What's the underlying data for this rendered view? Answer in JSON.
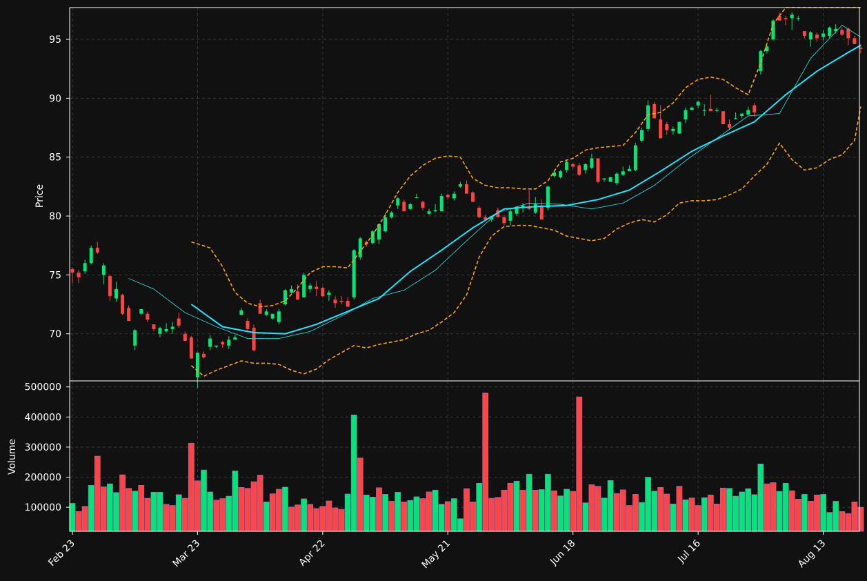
{
  "chart_data": [
    {
      "type": "candlestick",
      "panel": "price",
      "ylabel": "Price",
      "ylim": [
        66.0,
        97.7
      ],
      "yticks": [
        70,
        75,
        80,
        85,
        90,
        95
      ],
      "grid": true,
      "colors": {
        "up": "#00e676",
        "down": "#ff4444",
        "sma_fast": "#2ad4d4",
        "sma_slow": "#22e5ff",
        "bands": "#ffa500",
        "background": "#111111",
        "axes": "#ffffff",
        "grid": "#444444"
      },
      "candles_ohlc": [
        [
          75.5,
          75.6,
          74.3,
          75.2
        ],
        [
          75.2,
          75.4,
          74.3,
          74.8
        ],
        [
          75.3,
          76.3,
          75.1,
          76.0
        ],
        [
          76.0,
          77.5,
          75.9,
          77.3
        ],
        [
          77.3,
          77.8,
          76.8,
          76.9
        ],
        [
          75.0,
          76.0,
          74.2,
          75.8
        ],
        [
          74.9,
          75.0,
          72.8,
          73.2
        ],
        [
          73.0,
          74.4,
          72.7,
          73.8
        ],
        [
          73.3,
          73.4,
          71.6,
          71.7
        ],
        [
          72.2,
          72.4,
          71.1,
          71.1
        ],
        [
          69.0,
          70.4,
          68.6,
          70.3
        ],
        [
          71.7,
          72.0,
          71.6,
          72.1
        ],
        [
          71.7,
          71.9,
          71.0,
          71.2
        ],
        [
          70.8,
          70.8,
          70.2,
          70.4
        ],
        [
          70.0,
          70.6,
          69.7,
          70.5
        ],
        [
          70.2,
          70.9,
          70.1,
          70.4
        ],
        [
          70.4,
          71.0,
          70.0,
          70.6
        ],
        [
          71.3,
          71.8,
          70.5,
          70.7
        ],
        [
          70.0,
          70.2,
          69.4,
          69.4
        ],
        [
          69.7,
          69.8,
          67.9,
          67.9
        ],
        [
          66.3,
          68.4,
          65.4,
          68.4
        ],
        [
          68.3,
          68.5,
          67.9,
          68.0
        ],
        [
          68.9,
          69.9,
          68.6,
          69.6
        ],
        [
          68.9,
          69.0,
          68.8,
          69.0
        ],
        [
          69.3,
          69.4,
          68.8,
          69.1
        ],
        [
          69.0,
          69.8,
          68.7,
          69.5
        ],
        [
          69.5,
          69.9,
          69.5,
          69.7
        ],
        [
          71.6,
          72.2,
          71.6,
          72.0
        ],
        [
          71.1,
          71.3,
          70.2,
          70.4
        ],
        [
          70.5,
          70.8,
          68.5,
          68.6
        ],
        [
          72.6,
          72.9,
          71.8,
          71.7
        ],
        [
          71.6,
          72.1,
          71.5,
          71.9
        ],
        [
          71.3,
          71.7,
          71.2,
          71.7
        ],
        [
          71.0,
          72.1,
          70.8,
          71.9
        ],
        [
          72.5,
          73.8,
          72.4,
          73.7
        ],
        [
          73.5,
          74.1,
          73.4,
          73.8
        ],
        [
          73.6,
          74.2,
          72.9,
          72.9
        ],
        [
          73.1,
          75.2,
          73.1,
          75.0
        ],
        [
          73.8,
          74.3,
          73.5,
          74.1
        ],
        [
          74.0,
          74.5,
          73.2,
          73.8
        ],
        [
          73.9,
          74.0,
          73.1,
          73.2
        ],
        [
          73.3,
          73.7,
          72.8,
          73.5
        ],
        [
          72.9,
          73.2,
          72.2,
          72.6
        ],
        [
          72.8,
          73.2,
          72.5,
          72.7
        ],
        [
          72.8,
          73.1,
          72.3,
          72.3
        ],
        [
          73.1,
          77.2,
          72.9,
          77.1
        ],
        [
          76.5,
          78.2,
          76.3,
          78.1
        ],
        [
          77.8,
          77.9,
          77.4,
          77.6
        ],
        [
          77.7,
          78.8,
          77.6,
          78.7
        ],
        [
          78.0,
          79.4,
          77.6,
          79.3
        ],
        [
          78.7,
          80.3,
          78.6,
          79.9
        ],
        [
          79.9,
          80.4,
          79.8,
          80.3
        ],
        [
          80.9,
          81.6,
          80.6,
          81.5
        ],
        [
          81.2,
          81.4,
          80.4,
          80.4
        ],
        [
          80.6,
          81.1,
          80.5,
          81.0
        ],
        [
          81.6,
          81.9,
          81.5,
          81.6
        ],
        [
          81.2,
          81.3,
          80.5,
          80.7
        ],
        [
          80.2,
          80.6,
          80.1,
          80.4
        ],
        [
          80.4,
          81.0,
          80.3,
          80.5
        ],
        [
          80.4,
          81.9,
          80.4,
          81.7
        ],
        [
          81.8,
          81.9,
          81.4,
          81.6
        ],
        [
          81.5,
          82.1,
          81.3,
          81.9
        ],
        [
          82.5,
          82.9,
          82.4,
          82.7
        ],
        [
          82.7,
          83.0,
          82.0,
          81.9
        ],
        [
          82.0,
          82.1,
          81.3,
          81.2
        ],
        [
          80.7,
          80.9,
          79.8,
          79.9
        ],
        [
          79.9,
          80.1,
          79.6,
          79.7
        ],
        [
          79.7,
          80.0,
          79.5,
          79.9
        ],
        [
          80.5,
          80.7,
          79.9,
          79.9
        ],
        [
          79.9,
          80.1,
          79.2,
          79.4
        ],
        [
          79.6,
          80.6,
          79.2,
          80.4
        ],
        [
          80.2,
          80.8,
          80.0,
          80.8
        ],
        [
          80.7,
          81.1,
          80.3,
          80.9
        ],
        [
          80.7,
          82.2,
          80.5,
          80.6
        ],
        [
          80.3,
          81.6,
          80.2,
          81.0
        ],
        [
          80.9,
          81.4,
          79.7,
          79.7
        ],
        [
          80.7,
          82.6,
          80.5,
          82.5
        ],
        [
          83.4,
          83.9,
          83.3,
          83.7
        ],
        [
          83.3,
          83.9,
          83.2,
          83.8
        ],
        [
          83.9,
          84.7,
          83.7,
          84.6
        ],
        [
          84.4,
          84.5,
          84.0,
          84.2
        ],
        [
          84.3,
          84.5,
          83.4,
          83.5
        ],
        [
          83.9,
          84.5,
          83.6,
          84.4
        ],
        [
          84.1,
          85.3,
          84.0,
          84.9
        ],
        [
          84.9,
          84.8,
          82.8,
          82.9
        ],
        [
          83.1,
          83.2,
          82.9,
          83.2
        ],
        [
          82.9,
          83.3,
          82.9,
          83.3
        ],
        [
          82.8,
          83.7,
          82.6,
          83.6
        ],
        [
          83.5,
          84.2,
          83.4,
          83.8
        ],
        [
          83.8,
          84.3,
          83.9,
          84.0
        ],
        [
          83.9,
          86.2,
          83.8,
          86.0
        ],
        [
          86.4,
          87.5,
          86.3,
          87.3
        ],
        [
          87.4,
          89.8,
          87.2,
          89.4
        ],
        [
          89.5,
          89.7,
          88.3,
          88.3
        ],
        [
          88.2,
          89.4,
          87.6,
          86.6
        ],
        [
          87.8,
          88.0,
          86.9,
          87.3
        ],
        [
          87.2,
          87.6,
          86.9,
          87.4
        ],
        [
          87.0,
          87.8,
          87.0,
          88.0
        ],
        [
          88.2,
          89.2,
          87.9,
          89.0
        ],
        [
          89.0,
          89.3,
          89.0,
          89.2
        ],
        [
          89.4,
          89.8,
          89.2,
          89.7
        ],
        [
          89.0,
          89.5,
          88.5,
          89.0
        ],
        [
          89.1,
          90.3,
          88.9,
          88.9
        ],
        [
          89.0,
          89.2,
          88.8,
          89.0
        ],
        [
          88.9,
          88.8,
          87.9,
          87.8
        ],
        [
          87.8,
          88.2,
          87.3,
          87.5
        ],
        [
          88.3,
          88.8,
          88.2,
          88.3
        ],
        [
          88.5,
          88.7,
          88.3,
          88.7
        ],
        [
          88.6,
          89.3,
          88.6,
          89.0
        ],
        [
          89.4,
          89.6,
          88.4,
          88.8
        ],
        [
          92.3,
          94.1,
          92.0,
          94.0
        ],
        [
          94.0,
          94.5,
          93.8,
          94.4
        ],
        [
          95.0,
          96.7,
          94.9,
          96.6
        ],
        [
          97.0,
          97.3,
          96.6,
          96.6
        ],
        [
          96.8,
          97.0,
          96.2,
          96.7
        ],
        [
          96.8,
          97.3,
          95.8,
          97.1
        ],
        [
          96.8,
          97.0,
          96.6,
          96.8
        ],
        [
          95.7,
          95.6,
          95.1,
          95.3
        ],
        [
          95.0,
          95.7,
          94.4,
          95.6
        ],
        [
          95.4,
          95.6,
          94.8,
          95.1
        ],
        [
          95.2,
          95.8,
          94.9,
          95.5
        ],
        [
          95.3,
          96.1,
          95.1,
          96.0
        ],
        [
          95.7,
          96.3,
          95.5,
          95.9
        ],
        [
          95.8,
          96.0,
          95.3,
          95.4
        ],
        [
          95.9,
          96.0,
          94.5,
          95.1
        ],
        [
          95.1,
          95.3,
          94.6,
          94.6
        ],
        [
          94.3,
          94.6,
          93.8,
          94.2
        ]
      ],
      "sma_fast_x": [
        9,
        13,
        18,
        23,
        28,
        33,
        38,
        43,
        48,
        53,
        58,
        63,
        68,
        73,
        78,
        83,
        88,
        93,
        98,
        103,
        108,
        113,
        118,
        123,
        126
      ],
      "sma_fast_y": [
        74.7,
        73.8,
        71.8,
        70.6,
        69.6,
        69.6,
        70.2,
        71.5,
        73.0,
        73.7,
        75.4,
        77.9,
        80.3,
        81.1,
        81.0,
        80.6,
        81.1,
        82.6,
        84.7,
        86.6,
        88.5,
        88.7,
        93.4,
        96.2,
        95.2
      ],
      "sma_slow_x": [
        19,
        24,
        29,
        34,
        39,
        44,
        49,
        54,
        59,
        64,
        69,
        74,
        79,
        84,
        89,
        94,
        99,
        104,
        109,
        114,
        119,
        124,
        126
      ],
      "sma_slow_y": [
        72.5,
        70.6,
        70.1,
        70.0,
        70.8,
        71.9,
        73.0,
        75.3,
        77.1,
        79.0,
        80.6,
        80.8,
        80.9,
        81.4,
        82.2,
        83.8,
        85.5,
        86.8,
        88.0,
        90.3,
        92.3,
        93.9,
        94.5
      ],
      "band_upper_x": [
        19,
        22,
        24,
        26,
        28,
        30,
        32,
        34,
        36,
        38,
        40,
        42,
        44,
        46,
        48,
        50,
        52,
        54,
        56,
        58,
        60,
        62,
        64,
        66,
        68,
        70,
        72,
        74,
        76,
        78,
        80,
        82,
        84,
        86,
        88,
        90,
        92,
        94,
        96,
        98,
        100,
        102,
        104,
        106,
        108,
        110,
        112,
        114,
        116,
        118,
        120,
        122,
        124,
        126
      ],
      "band_upper_y": [
        77.8,
        77.3,
        75.7,
        73.5,
        72.6,
        72.3,
        72.4,
        72.8,
        73.9,
        75.2,
        75.7,
        75.7,
        75.6,
        77.0,
        78.4,
        80.1,
        82.0,
        83.4,
        84.3,
        84.9,
        85.1,
        85.0,
        83.2,
        82.6,
        82.4,
        82.4,
        82.3,
        82.3,
        83.0,
        84.6,
        84.9,
        85.6,
        85.8,
        85.9,
        86.0,
        87.1,
        88.6,
        88.8,
        89.6,
        90.9,
        91.6,
        91.8,
        91.6,
        90.9,
        90.3,
        93.0,
        96.3,
        97.7,
        97.7,
        97.7,
        97.7,
        97.7,
        97.7,
        97.7
      ],
      "band_lower_x": [
        19,
        21,
        23,
        25,
        27,
        29,
        31,
        33,
        35,
        37,
        39,
        41,
        43,
        45,
        47,
        49,
        51,
        53,
        55,
        57,
        59,
        61,
        63,
        65,
        67,
        69,
        71,
        73,
        75,
        77,
        79,
        81,
        83,
        85,
        87,
        89,
        91,
        93,
        95,
        97,
        99,
        101,
        103,
        105,
        107,
        109,
        111,
        113,
        115,
        117,
        119,
        121,
        123,
        125,
        126
      ],
      "band_lower_y": [
        67.3,
        66.4,
        66.9,
        67.3,
        67.7,
        67.5,
        67.5,
        67.4,
        66.9,
        66.6,
        67.0,
        67.8,
        68.4,
        69.0,
        68.8,
        69.1,
        69.3,
        69.5,
        70.0,
        70.3,
        71.0,
        71.8,
        73.3,
        76.5,
        78.3,
        79.1,
        79.2,
        79.2,
        79.0,
        78.8,
        78.3,
        78.1,
        77.9,
        78.1,
        78.9,
        79.4,
        79.7,
        79.5,
        80.1,
        81.1,
        81.3,
        81.3,
        81.4,
        81.8,
        82.3,
        83.4,
        84.4,
        86.2,
        84.8,
        83.9,
        84.1,
        84.8,
        85.2,
        86.4,
        89.3
      ],
      "xticks": [
        "Feb 23",
        "Mar 23",
        "Apr 22",
        "May 21",
        "Jun 18",
        "Jul 16",
        "Aug 13"
      ],
      "xtick_index": [
        0,
        20,
        40,
        60,
        80,
        100,
        120
      ],
      "n": 127
    },
    {
      "type": "bar",
      "panel": "volume",
      "ylabel": "Volume",
      "ylim": [
        20000,
        520000
      ],
      "yticks": [
        100000,
        200000,
        300000,
        400000,
        500000
      ],
      "grid": true,
      "values": [
        113000,
        86000,
        103000,
        173000,
        270000,
        168000,
        178000,
        149000,
        208000,
        163000,
        154000,
        173000,
        130000,
        150000,
        150000,
        110000,
        106000,
        142000,
        130000,
        313000,
        188000,
        224000,
        151000,
        124000,
        129000,
        137000,
        221000,
        166000,
        163000,
        185000,
        207000,
        118000,
        145000,
        160000,
        167000,
        101000,
        108000,
        128000,
        110000,
        96000,
        103000,
        121000,
        98000,
        93000,
        144000,
        407000,
        264000,
        141000,
        134000,
        165000,
        143000,
        120000,
        150000,
        118000,
        123000,
        135000,
        129000,
        151000,
        157000,
        110000,
        119000,
        129000,
        62000,
        162000,
        118000,
        180000,
        480000,
        130000,
        133000,
        157000,
        180000,
        187000,
        157000,
        210000,
        157000,
        159000,
        210000,
        155000,
        138000,
        160000,
        153000,
        467000,
        115000,
        175000,
        170000,
        131000,
        189000,
        146000,
        158000,
        106000,
        143000,
        116000,
        200000,
        154000,
        166000,
        144000,
        111000,
        170000,
        125000,
        131000,
        106000,
        132000,
        141000,
        111000,
        164000,
        163000,
        137000,
        151000,
        162000,
        142000,
        244000,
        178000,
        182000,
        153000,
        180000,
        155000,
        127000,
        143000,
        120000,
        141000,
        143000,
        83000,
        120000,
        86000,
        79000,
        118000,
        100000
      ],
      "colors_up_down": "uddudduuddudduudduddduudduuddddudduddudddddduuduudududuudduuduuddudddddududuuduuddudduudddduuuddududduddduuuuuudduuddudduuudd",
      "xticks": [
        "Feb 23",
        "Mar 23",
        "Apr 22",
        "May 21",
        "Jun 18",
        "Jul 16",
        "Aug 13"
      ],
      "xtick_index": [
        0,
        20,
        40,
        60,
        80,
        100,
        120
      ]
    }
  ]
}
